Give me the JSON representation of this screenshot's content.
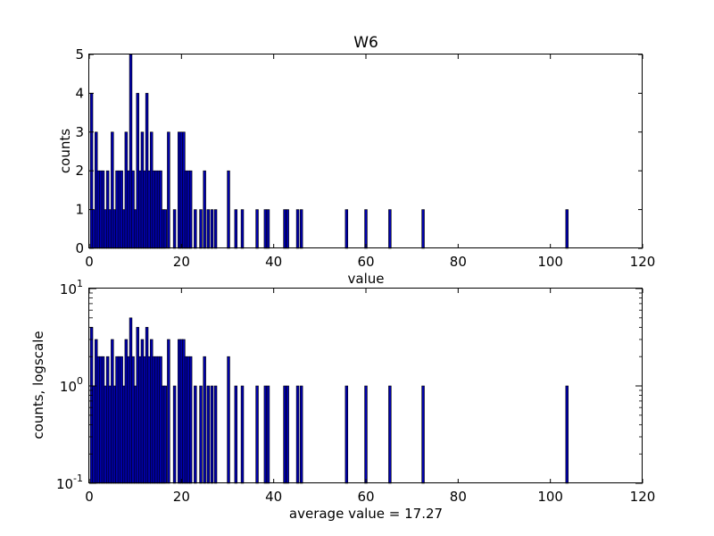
{
  "chart_data": [
    {
      "type": "bar",
      "title": "W6",
      "xlabel": "value",
      "ylabel": "counts",
      "xlim": [
        0,
        120
      ],
      "ylim": [
        0,
        5
      ],
      "yscale": "linear",
      "xticks": [
        "0",
        "20",
        "40",
        "60",
        "80",
        "100",
        "120"
      ],
      "yticks": [
        "0",
        "1",
        "2",
        "3",
        "4",
        "5"
      ],
      "bar_width": 0.55,
      "bar_color": "#0000aa",
      "x": [
        0.5,
        1.0,
        1.5,
        2.0,
        2.5,
        3.0,
        3.5,
        4.0,
        4.5,
        5.0,
        5.5,
        6.0,
        6.5,
        7.0,
        7.5,
        8.0,
        8.5,
        9.0,
        9.5,
        10.0,
        10.5,
        11.0,
        11.5,
        12.0,
        12.5,
        13.0,
        13.5,
        14.0,
        14.5,
        15.0,
        15.5,
        16.0,
        16.5,
        17.2,
        18.5,
        19.5,
        20.0,
        20.5,
        21.0,
        21.5,
        22.0,
        23.0,
        24.2,
        25.0,
        25.8,
        26.6,
        27.4,
        30.2,
        31.8,
        33.2,
        36.4,
        38.2,
        38.8,
        42.4,
        43.0,
        45.2,
        46.0,
        55.8,
        60.0,
        65.2,
        72.4,
        103.6
      ],
      "values": [
        4,
        1,
        3,
        2,
        2,
        2,
        1,
        2,
        1,
        3,
        1,
        2,
        2,
        2,
        1,
        3,
        2,
        5,
        2,
        1,
        4,
        2,
        3,
        2,
        4,
        2,
        3,
        2,
        2,
        2,
        2,
        1,
        1,
        3,
        1,
        3,
        3,
        3,
        2,
        2,
        2,
        1,
        1,
        2,
        1,
        1,
        1,
        2,
        1,
        1,
        1,
        1,
        1,
        1,
        1,
        1,
        1,
        1,
        1,
        1,
        1,
        1
      ]
    },
    {
      "type": "bar",
      "title": "",
      "xlabel": "average value = 17.27",
      "ylabel": "counts, logscale",
      "xlim": [
        0,
        120
      ],
      "ylim": [
        0.1,
        10
      ],
      "yscale": "log",
      "xticks": [
        "0",
        "20",
        "40",
        "60",
        "80",
        "100",
        "120"
      ],
      "yticks": [
        {
          "value": 0.1,
          "base": "10",
          "exp": "-1"
        },
        {
          "value": 1,
          "base": "10",
          "exp": "0"
        },
        {
          "value": 10,
          "base": "10",
          "exp": "1"
        }
      ],
      "bar_width": 0.55,
      "bar_color": "#0000aa",
      "x": [
        0.5,
        1.0,
        1.5,
        2.0,
        2.5,
        3.0,
        3.5,
        4.0,
        4.5,
        5.0,
        5.5,
        6.0,
        6.5,
        7.0,
        7.5,
        8.0,
        8.5,
        9.0,
        9.5,
        10.0,
        10.5,
        11.0,
        11.5,
        12.0,
        12.5,
        13.0,
        13.5,
        14.0,
        14.5,
        15.0,
        15.5,
        16.0,
        16.5,
        17.2,
        18.5,
        19.5,
        20.0,
        20.5,
        21.0,
        21.5,
        22.0,
        23.0,
        24.2,
        25.0,
        25.8,
        26.6,
        27.4,
        30.2,
        31.8,
        33.2,
        36.4,
        38.2,
        38.8,
        42.4,
        43.0,
        45.2,
        46.0,
        55.8,
        60.0,
        65.2,
        72.4,
        103.6
      ],
      "values": [
        4,
        1,
        3,
        2,
        2,
        2,
        1,
        2,
        1,
        3,
        1,
        2,
        2,
        2,
        1,
        3,
        2,
        5,
        2,
        1,
        4,
        2,
        3,
        2,
        4,
        2,
        3,
        2,
        2,
        2,
        2,
        1,
        1,
        3,
        1,
        3,
        3,
        3,
        2,
        2,
        2,
        1,
        1,
        2,
        1,
        1,
        1,
        2,
        1,
        1,
        1,
        1,
        1,
        1,
        1,
        1,
        1,
        1,
        1,
        1,
        1,
        1
      ]
    }
  ]
}
